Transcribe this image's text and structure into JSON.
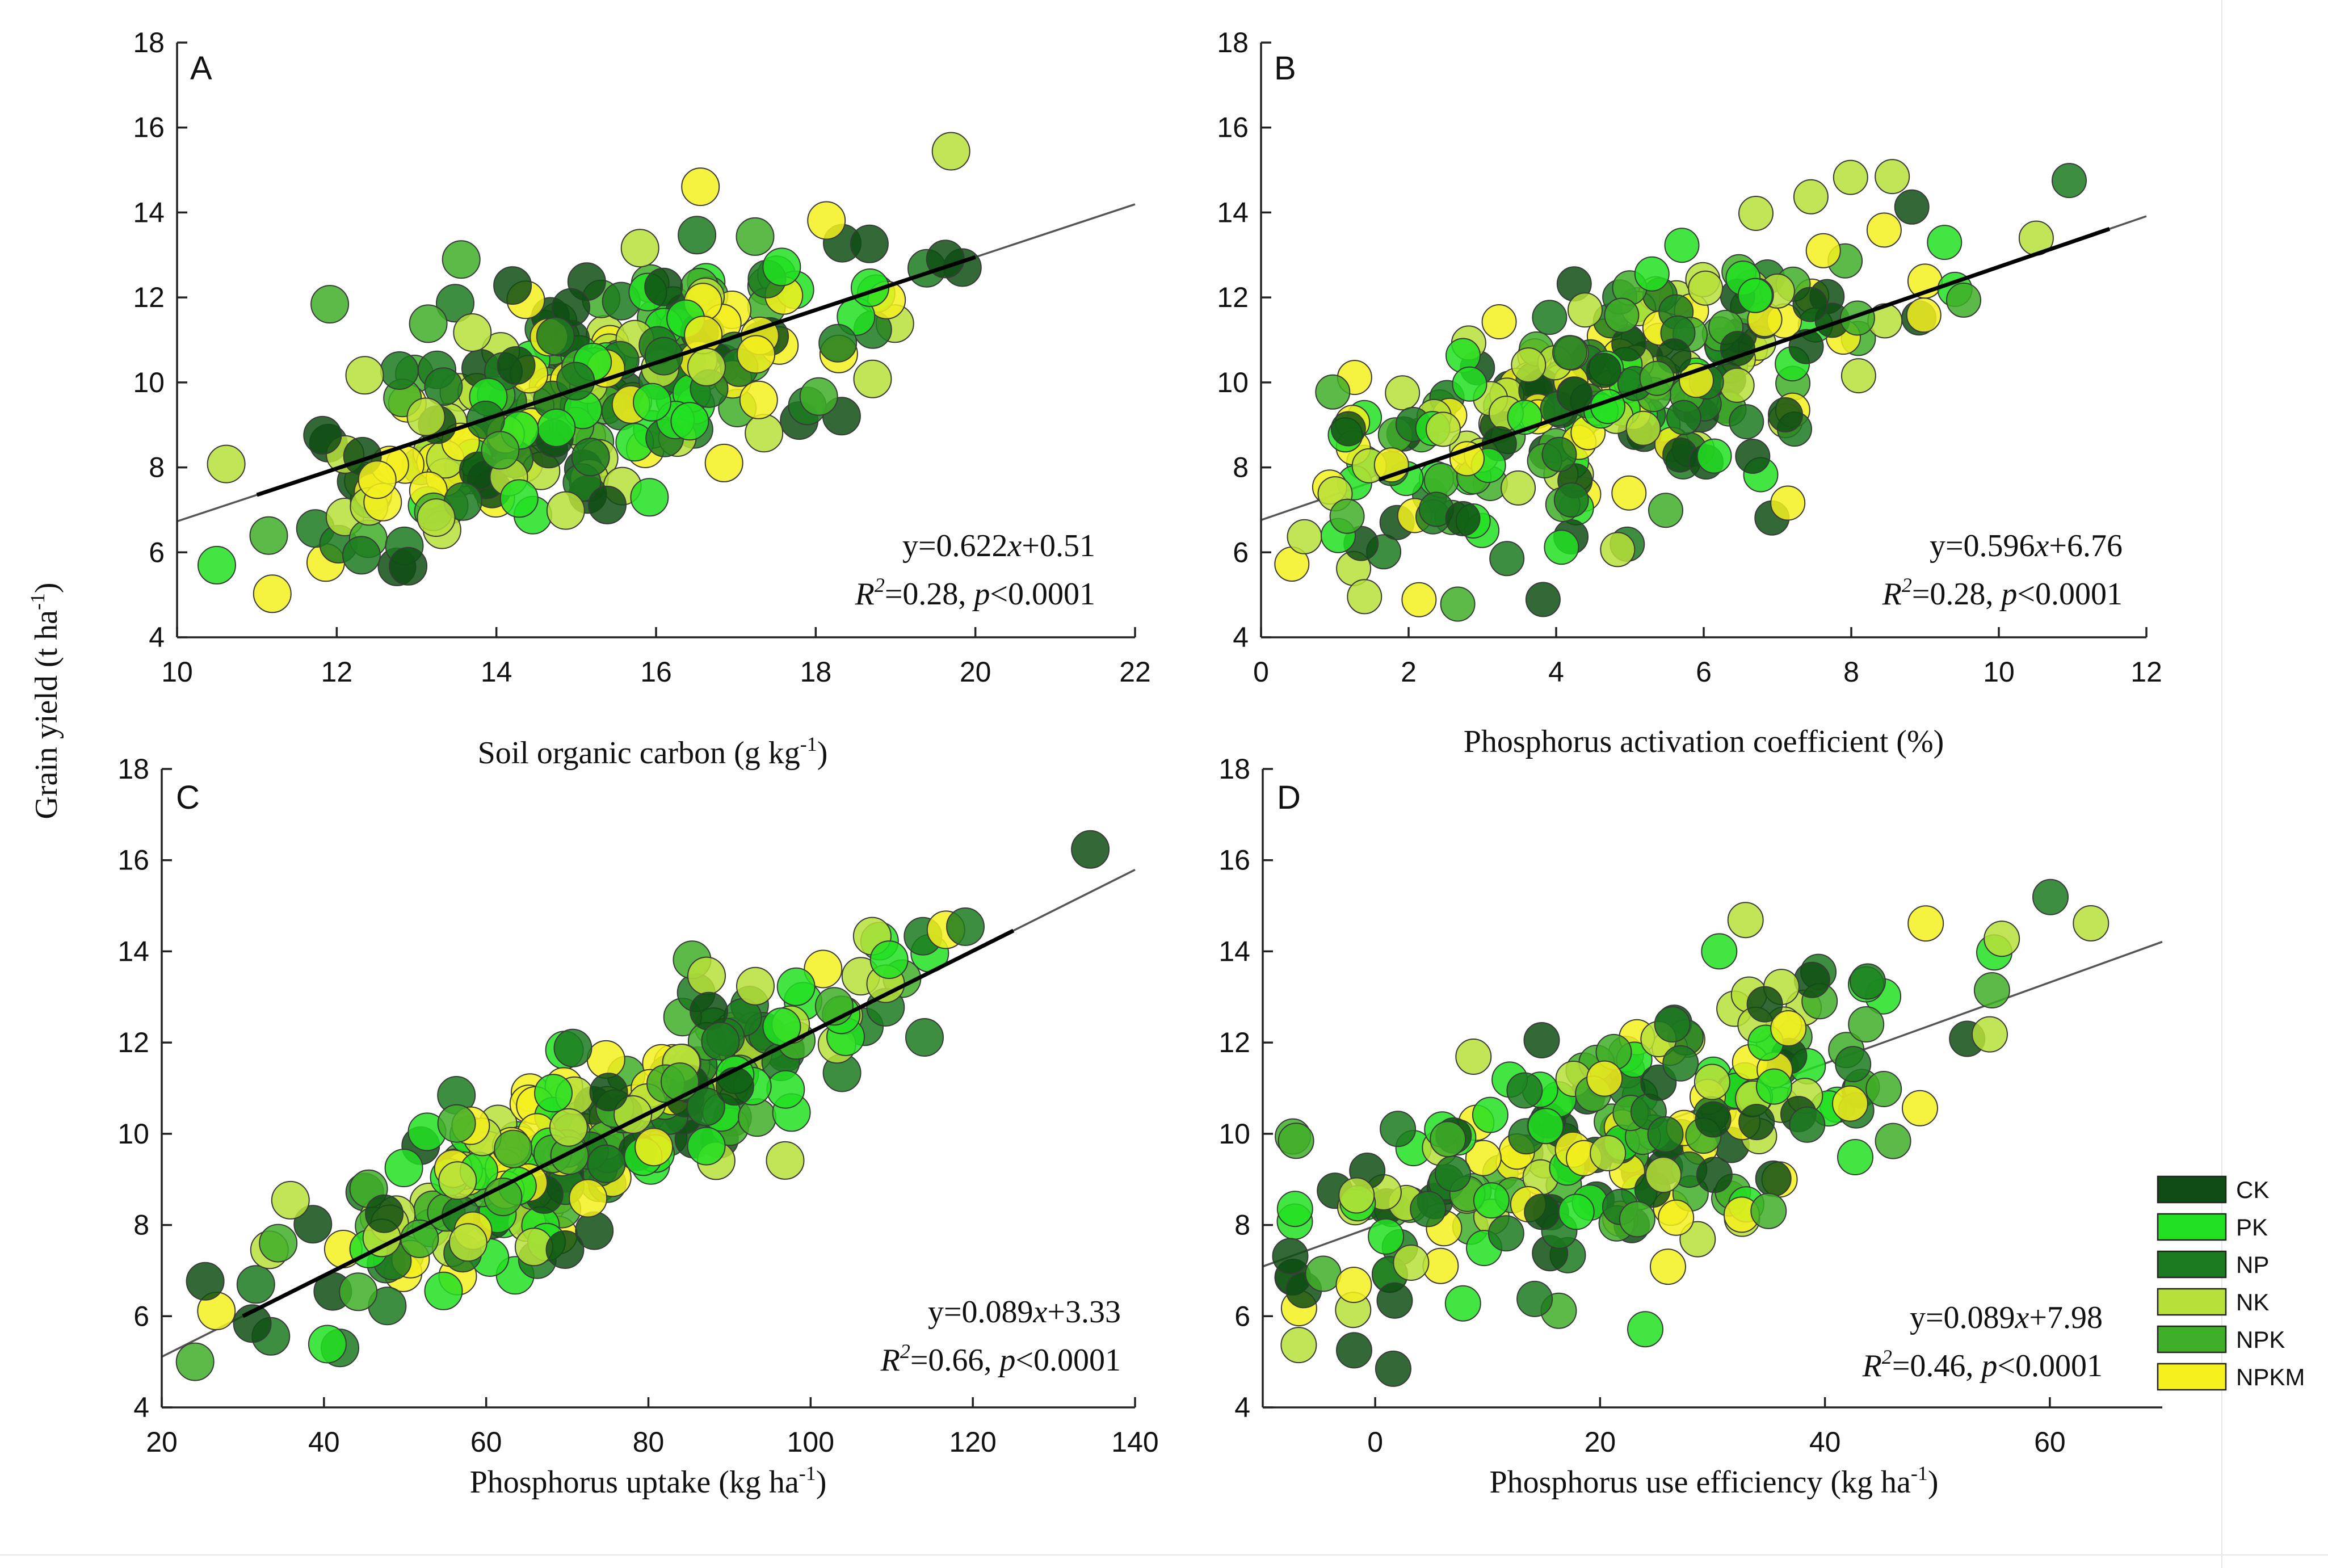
{
  "colors": {
    "CK": "#0f4d14",
    "PK": "#22e022",
    "NP": "#1c7a20",
    "NK": "#b7e03a",
    "NPK": "#3fae28",
    "NPKM": "#f5f01e"
  },
  "legend": [
    {
      "key": "CK",
      "label": "CK"
    },
    {
      "key": "PK",
      "label": "PK"
    },
    {
      "key": "NP",
      "label": "NP"
    },
    {
      "key": "NK",
      "label": "NK"
    },
    {
      "key": "NPK",
      "label": "NPK"
    },
    {
      "key": "NPKM",
      "label": "NPKM"
    }
  ],
  "shared_ylabel_main": "Grain yield (t ha",
  "shared_ylabel_sup": "-1",
  "shared_ylabel_end": ")",
  "chart_data": [
    {
      "type": "scatter",
      "panel": "A",
      "xlabel_main": "Soil organic carbon (g kg",
      "xlabel_sup": "-1",
      "xlabel_end": ")",
      "xlim": [
        10,
        22
      ],
      "ylim": [
        4,
        18
      ],
      "xticks": [
        10,
        12,
        14,
        16,
        18,
        20,
        22
      ],
      "yticks": [
        4,
        6,
        8,
        10,
        12,
        14,
        16,
        18
      ],
      "fit": {
        "slope": 0.622,
        "intercept": 0.51,
        "x_range": [
          10,
          22
        ],
        "bold_range": [
          11,
          20
        ]
      },
      "equation": {
        "y": "y=0.622",
        "x": "x",
        "rest": "+0.51",
        "r2_label": "R",
        "r2_sup": "2",
        "r2_rest": "=0.28, ",
        "p_label": "p",
        "p_rest": "<0.0001"
      },
      "x_center": 15.3,
      "x_spread": 1.9,
      "resid_sd": 1.35,
      "n_points": 260,
      "seed": 11
    },
    {
      "type": "scatter",
      "panel": "B",
      "xlabel_main": "Phosphorus activation coefficient (%)",
      "xlabel_sup": "",
      "xlabel_end": "",
      "xlim": [
        0,
        12
      ],
      "ylim": [
        4,
        18
      ],
      "xticks": [
        0,
        2,
        4,
        6,
        8,
        10,
        12
      ],
      "yticks": [
        4,
        6,
        8,
        10,
        12,
        14,
        16,
        18
      ],
      "fit": {
        "slope": 0.596,
        "intercept": 6.76,
        "x_range": [
          0,
          12
        ],
        "bold_range": [
          1.6,
          11.5
        ]
      },
      "equation": {
        "y": "y=0.596",
        "x": "x",
        "rest": "+6.76",
        "r2_label": "R",
        "r2_sup": "2",
        "r2_rest": "=0.28, ",
        "p_label": "p",
        "p_rest": "<0.0001"
      },
      "x_center": 4.8,
      "x_spread": 2.0,
      "resid_sd": 1.4,
      "n_points": 260,
      "seed": 23
    },
    {
      "type": "scatter",
      "panel": "C",
      "xlabel_main": "Phosphorus uptake (kg ha",
      "xlabel_sup": "-1",
      "xlabel_end": ")",
      "xlim": [
        20,
        140
      ],
      "ylim": [
        4,
        18
      ],
      "xticks": [
        20,
        40,
        60,
        80,
        100,
        120,
        140
      ],
      "yticks": [
        4,
        6,
        8,
        10,
        12,
        14,
        16,
        18
      ],
      "fit": {
        "slope": 0.089,
        "intercept": 3.33,
        "x_range": [
          20,
          140
        ],
        "bold_range": [
          30,
          125
        ]
      },
      "equation": {
        "y": "y=0.089",
        "x": "x",
        "rest": "+3.33",
        "r2_label": "R",
        "r2_sup": "2",
        "r2_rest": "=0.66, ",
        "p_label": "p",
        "p_rest": "<0.0001"
      },
      "x_center": 74,
      "x_spread": 20,
      "resid_sd": 0.95,
      "n_points": 260,
      "seed": 37
    },
    {
      "type": "scatter",
      "panel": "D",
      "xlabel_main": "Phosphorus use efficiency (kg ha",
      "xlabel_sup": "-1",
      "xlabel_end": ")",
      "xlim": [
        -10,
        70
      ],
      "ylim": [
        4,
        18
      ],
      "xticks": [
        0,
        20,
        40,
        60
      ],
      "yticks": [
        4,
        6,
        8,
        10,
        12,
        14,
        16,
        18
      ],
      "fit": {
        "slope": 0.089,
        "intercept": 7.98,
        "x_range": [
          -10,
          70
        ]
      },
      "equation": {
        "y": "y=0.089",
        "x": "x",
        "rest": "+7.98",
        "r2_label": "R",
        "r2_sup": "2",
        "r2_rest": "=0.46, ",
        "p_label": "p",
        "p_rest": "<0.0001"
      },
      "x_center": 22,
      "x_spread": 17,
      "resid_sd": 1.55,
      "n_points": 230,
      "seed": 53
    }
  ]
}
